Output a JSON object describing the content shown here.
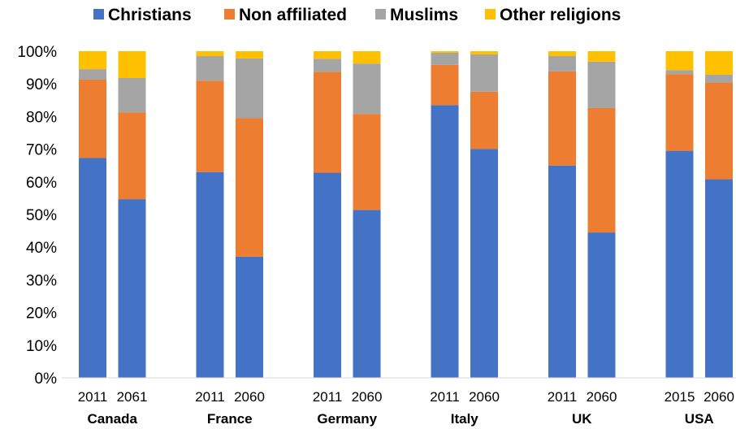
{
  "chart_data": {
    "type": "bar",
    "stacked": true,
    "percent": true,
    "legend_position": "top",
    "grid": false,
    "ylim": [
      0,
      100
    ],
    "ytick_labels": [
      "0%",
      "10%",
      "20%",
      "30%",
      "40%",
      "50%",
      "60%",
      "70%",
      "80%",
      "90%",
      "100%"
    ],
    "groups": [
      {
        "country": "Canada",
        "years": [
          "2011",
          "2061"
        ]
      },
      {
        "country": "France",
        "years": [
          "2011",
          "2060"
        ]
      },
      {
        "country": "Germany",
        "years": [
          "2011",
          "2060"
        ]
      },
      {
        "country": "Italy",
        "years": [
          "2011",
          "2060"
        ]
      },
      {
        "country": "UK",
        "years": [
          "2011",
          "2060"
        ]
      },
      {
        "country": "USA",
        "years": [
          "2015",
          "2060"
        ]
      }
    ],
    "series": [
      {
        "name": "Christians",
        "color": "#4472C4",
        "values": [
          67.3,
          54.7,
          63.0,
          37.1,
          62.8,
          51.4,
          83.5,
          70.1,
          65.0,
          44.5,
          69.5,
          60.8
        ]
      },
      {
        "name": "Non affiliated",
        "color": "#ED7D31",
        "values": [
          24.0,
          26.6,
          28.0,
          42.4,
          30.9,
          29.4,
          12.3,
          17.5,
          28.8,
          38.1,
          23.5,
          29.6
        ]
      },
      {
        "name": "Muslims",
        "color": "#A5A5A5",
        "values": [
          3.2,
          10.5,
          7.5,
          18.3,
          4.0,
          15.4,
          3.7,
          11.4,
          4.7,
          14.2,
          1.2,
          2.4
        ]
      },
      {
        "name": "Other religions",
        "color": "#FFC000",
        "values": [
          5.5,
          8.2,
          1.5,
          2.2,
          2.3,
          3.8,
          0.5,
          1.0,
          1.5,
          3.2,
          5.8,
          7.2
        ]
      }
    ]
  }
}
